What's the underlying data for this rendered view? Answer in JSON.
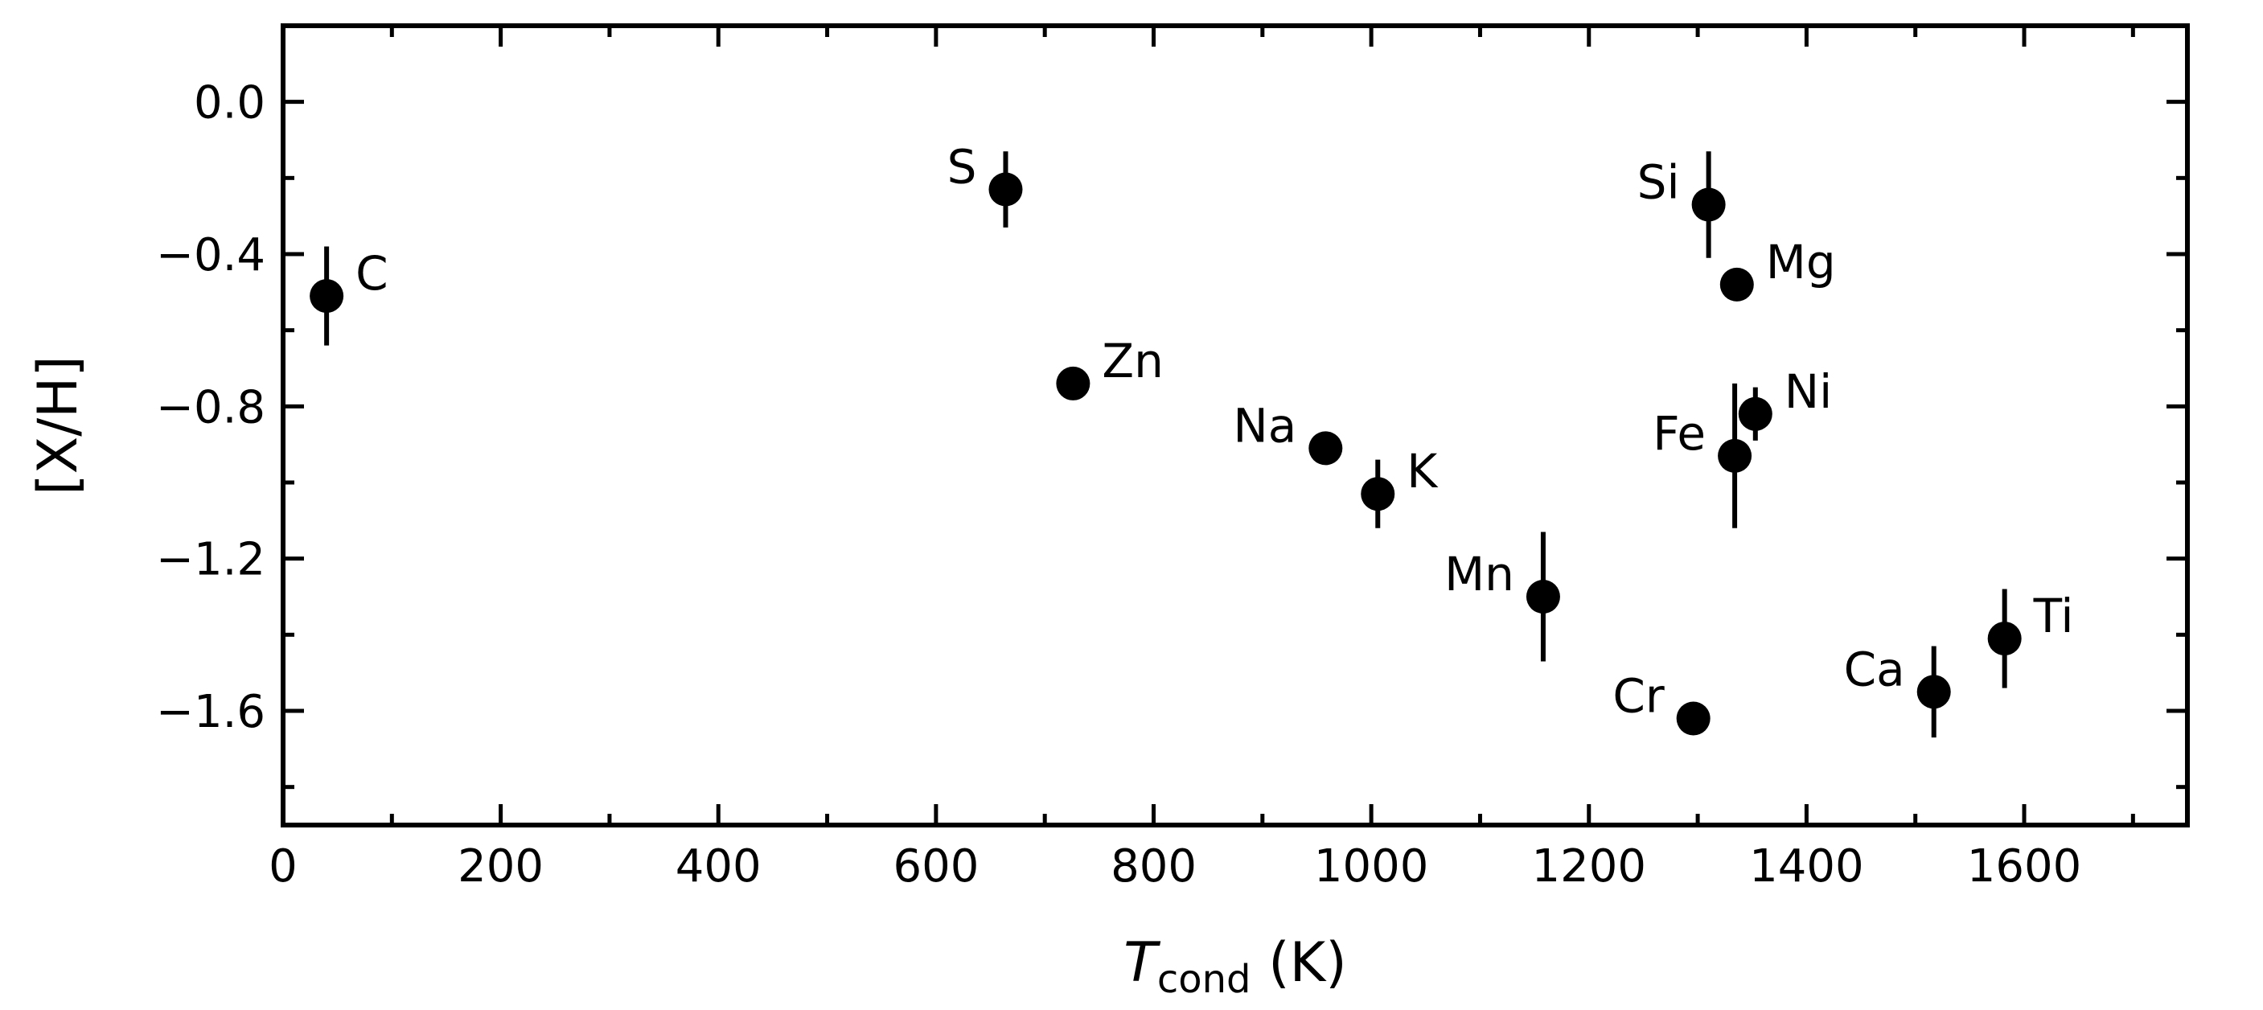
{
  "chart_data": {
    "type": "scatter",
    "xlabel": {
      "symbol": "T",
      "subscript": "cond",
      "unit": " (K)"
    },
    "ylabel": "[X/H]",
    "xlim": [
      0,
      1750
    ],
    "ylim": [
      -1.9,
      0.2
    ],
    "x_ticks": [
      0,
      200,
      400,
      600,
      800,
      1000,
      1200,
      1400,
      1600
    ],
    "x_tick_labels": [
      "0",
      "200",
      "400",
      "600",
      "800",
      "1000",
      "1200",
      "1400",
      "1600"
    ],
    "y_ticks": [
      0.0,
      -0.4,
      -0.8,
      -1.2,
      -1.6
    ],
    "y_tick_labels": [
      "0.0",
      "−0.4",
      "−0.8",
      "−1.2",
      "−1.6"
    ],
    "x_minor_step": 100,
    "y_minor_step": 0.2,
    "grid": false,
    "legend": "none",
    "marker_color": "#000000",
    "points": [
      {
        "label": "C",
        "x": 40,
        "y": -0.51,
        "err": 0.13,
        "label_side": "right"
      },
      {
        "label": "S",
        "x": 664,
        "y": -0.23,
        "err": 0.1,
        "label_side": "left"
      },
      {
        "label": "Zn",
        "x": 726,
        "y": -0.74,
        "err": 0.02,
        "label_side": "right"
      },
      {
        "label": "Na",
        "x": 958,
        "y": -0.91,
        "err": 0.02,
        "label_side": "left"
      },
      {
        "label": "K",
        "x": 1006,
        "y": -1.03,
        "err": 0.09,
        "label_side": "right"
      },
      {
        "label": "Mn",
        "x": 1158,
        "y": -1.3,
        "err": 0.17,
        "label_side": "left"
      },
      {
        "label": "Cr",
        "x": 1296,
        "y": -1.62,
        "err": 0.04,
        "label_side": "left"
      },
      {
        "label": "Si",
        "x": 1310,
        "y": -0.27,
        "err": 0.14,
        "label_side": "left"
      },
      {
        "label": "Mg",
        "x": 1336,
        "y": -0.48,
        "err": 0.02,
        "label_side": "right"
      },
      {
        "label": "Fe",
        "x": 1334,
        "y": -0.93,
        "err": 0.19,
        "label_side": "left"
      },
      {
        "label": "Ni",
        "x": 1353,
        "y": -0.82,
        "err": 0.07,
        "label_side": "right"
      },
      {
        "label": "Ca",
        "x": 1517,
        "y": -1.55,
        "err": 0.12,
        "label_side": "left"
      },
      {
        "label": "Ti",
        "x": 1582,
        "y": -1.41,
        "err": 0.13,
        "label_side": "right"
      }
    ]
  }
}
